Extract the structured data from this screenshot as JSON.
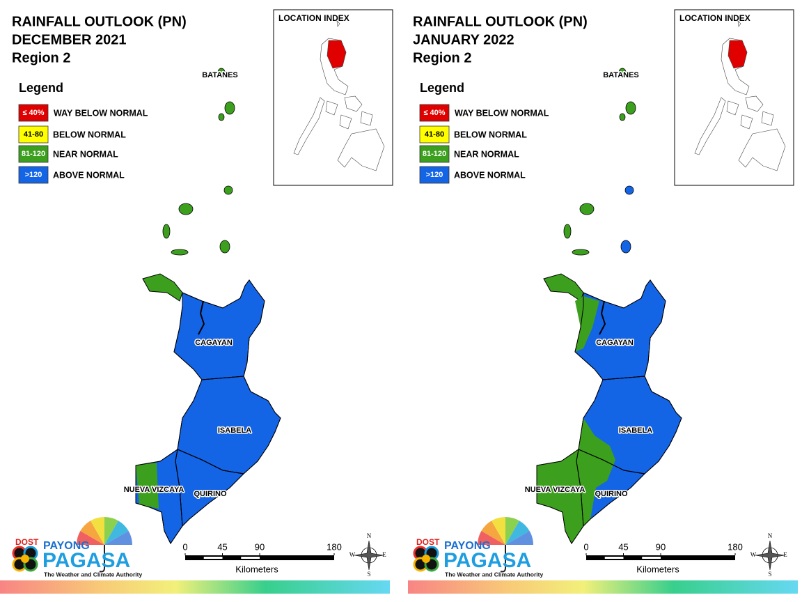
{
  "maps": [
    {
      "title": [
        "RAINFALL OUTLOOK (PN)",
        "DECEMBER 2021",
        "Region 2"
      ],
      "legend": {
        "title": "Legend",
        "items": [
          {
            "range": "≤ 40%",
            "label": "WAY BELOW NORMAL",
            "color": "#e00000"
          },
          {
            "range": "41-80",
            "label": "BELOW NORMAL",
            "color": "#ffff00"
          },
          {
            "range": "81-120",
            "label": "NEAR NORMAL",
            "color": "#3c9f1e"
          },
          {
            "range": ">120",
            "label": "ABOVE NORMAL",
            "color": "#1464e6"
          }
        ]
      },
      "location_index": "LOCATION INDEX",
      "provinces": [
        "BATANES",
        "CAGAYAN",
        "ISABELA",
        "NUEVA VIZCAYA",
        "QUIRINO"
      ],
      "scale": {
        "ticks": [
          0,
          45,
          90,
          180
        ],
        "unit": "Kilometers"
      },
      "compass": [
        "N",
        "E",
        "S",
        "W"
      ],
      "logo": {
        "agency": "DOST",
        "line1": "PAYONG",
        "line2": "PAGASA",
        "tagline": "The Weather and Climate Authority"
      }
    },
    {
      "title": [
        "RAINFALL OUTLOOK (PN)",
        "JANUARY 2022",
        "Region 2"
      ],
      "legend": {
        "title": "Legend",
        "items": [
          {
            "range": "≤ 40%",
            "label": "WAY BELOW NORMAL",
            "color": "#e00000"
          },
          {
            "range": "41-80",
            "label": "BELOW NORMAL",
            "color": "#ffff00"
          },
          {
            "range": "81-120",
            "label": "NEAR NORMAL",
            "color": "#3c9f1e"
          },
          {
            "range": ">120",
            "label": "ABOVE NORMAL",
            "color": "#1464e6"
          }
        ]
      },
      "location_index": "LOCATION INDEX",
      "provinces": [
        "BATANES",
        "CAGAYAN",
        "ISABELA",
        "NUEVA VIZCAYA",
        "QUIRINO"
      ],
      "scale": {
        "ticks": [
          0,
          45,
          90,
          180
        ],
        "unit": "Kilometers"
      },
      "compass": [
        "N",
        "E",
        "S",
        "W"
      ],
      "logo": {
        "agency": "DOST",
        "line1": "PAYONG",
        "line2": "PAGASA",
        "tagline": "The Weather and Climate Authority"
      }
    }
  ]
}
